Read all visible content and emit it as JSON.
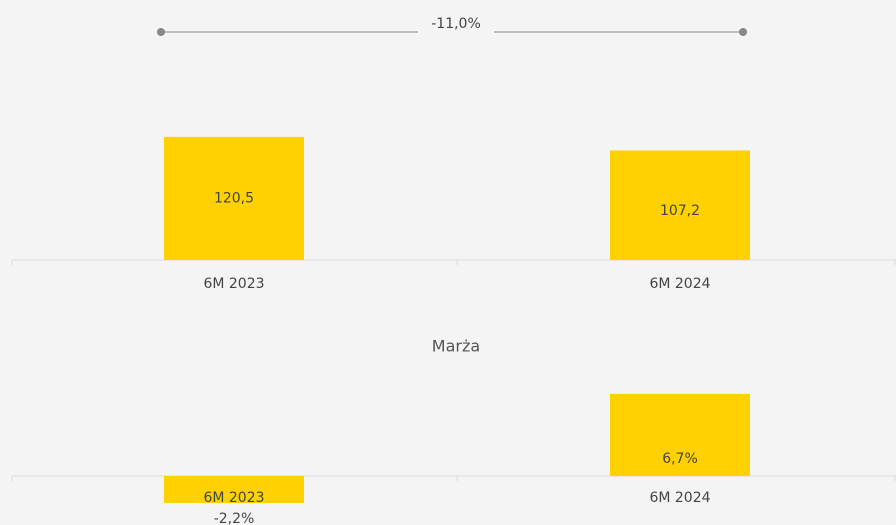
{
  "chart_data": [
    {
      "type": "bar",
      "annotation": "-11,0%",
      "categories": [
        "6M 2023",
        "6M 2024"
      ],
      "values": [
        120.5,
        107.2
      ],
      "value_labels": [
        "120,5",
        "107,2"
      ],
      "color": "#ffd100"
    },
    {
      "type": "bar",
      "title": "Marża",
      "categories": [
        "6M 2023",
        "6M 2024"
      ],
      "values": [
        -2.2,
        6.7
      ],
      "value_labels": [
        "-2,2%",
        "6,7%"
      ],
      "color": "#ffd100"
    }
  ]
}
